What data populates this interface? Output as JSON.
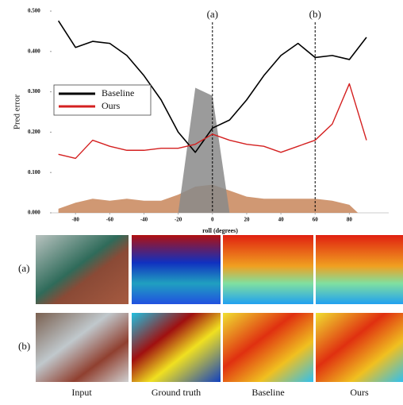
{
  "chart_data": {
    "type": "line",
    "ylabel": "Pred error",
    "xlabel": "roll (degrees)",
    "x": [
      -90,
      -80,
      -70,
      -60,
      -50,
      -40,
      -30,
      -20,
      -10,
      0,
      10,
      20,
      30,
      40,
      50,
      60,
      70,
      80,
      90
    ],
    "series": [
      {
        "name": "Baseline",
        "color": "#000000",
        "values": [
          0.476,
          0.41,
          0.425,
          0.42,
          0.39,
          0.34,
          0.28,
          0.2,
          0.15,
          0.21,
          0.23,
          0.28,
          0.34,
          0.39,
          0.42,
          0.385,
          0.39,
          0.38,
          0.435
        ]
      },
      {
        "name": "Ours",
        "color": "#d42020",
        "values": [
          0.145,
          0.135,
          0.18,
          0.165,
          0.155,
          0.155,
          0.16,
          0.16,
          0.17,
          0.195,
          0.18,
          0.17,
          0.165,
          0.15,
          0.165,
          0.18,
          0.22,
          0.32,
          0.18
        ]
      }
    ],
    "areas": [
      {
        "color": "#c8865a",
        "x": [
          -90,
          -80,
          -70,
          -60,
          -50,
          -40,
          -30,
          -20,
          -10,
          0,
          10,
          20,
          30,
          40,
          50,
          60,
          70,
          80,
          85
        ],
        "values": [
          0.01,
          0.025,
          0.035,
          0.03,
          0.035,
          0.03,
          0.03,
          0.045,
          0.065,
          0.07,
          0.055,
          0.04,
          0.035,
          0.035,
          0.035,
          0.035,
          0.03,
          0.02,
          0
        ]
      },
      {
        "color": "#8a8a8a",
        "x": [
          -20,
          -10,
          0,
          10
        ],
        "values": [
          0,
          0.31,
          0.29,
          0
        ]
      }
    ],
    "annotations": [
      {
        "x": 0,
        "label": "(a)"
      },
      {
        "x": 60,
        "label": "(b)"
      }
    ],
    "xlim": [
      -94,
      103
    ],
    "ylim": [
      0,
      0.5
    ],
    "xticks": [
      -80,
      -60,
      -40,
      -20,
      0,
      20,
      40,
      60,
      80
    ],
    "yticks": [
      {
        "value": 0,
        "label": "0.000"
      },
      {
        "value": 0.1,
        "label": "0.100"
      },
      {
        "value": 0.2,
        "label": "0.200"
      },
      {
        "value": 0.3,
        "label": "0.300"
      },
      {
        "value": 0.4,
        "label": "0.400"
      },
      {
        "value": 0.5,
        "label": "0.500"
      }
    ],
    "legend": "upper left"
  },
  "figure": {
    "row_labels": [
      "(a)",
      "(b)"
    ],
    "column_labels": [
      "Input",
      "Ground truth",
      "Baseline",
      "Ours"
    ]
  }
}
